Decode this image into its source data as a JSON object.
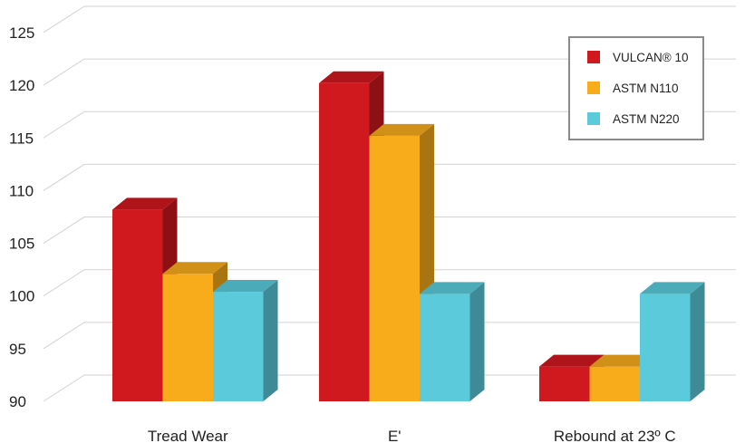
{
  "chart_data": {
    "type": "bar",
    "style": "3d",
    "categories": [
      "Tread Wear",
      "E'",
      "Rebound at 23º C"
    ],
    "series": [
      {
        "name": "VULCAN® 10",
        "color": "#D0181F",
        "values": [
          108.2,
          120.2,
          93.3
        ]
      },
      {
        "name": "ASTM N110",
        "color": "#F9AC1B",
        "values": [
          102.1,
          115.2,
          93.3
        ]
      },
      {
        "name": "ASTM N220",
        "color": "#5BCBDC",
        "values": [
          100.4,
          100.2,
          100.2
        ]
      }
    ],
    "yticks": [
      90,
      95,
      100,
      105,
      110,
      115,
      120,
      125
    ],
    "ylim": [
      90,
      125
    ],
    "xlabel": "",
    "ylabel": "",
    "title": "",
    "legend_position": "top-right",
    "grid": true
  }
}
